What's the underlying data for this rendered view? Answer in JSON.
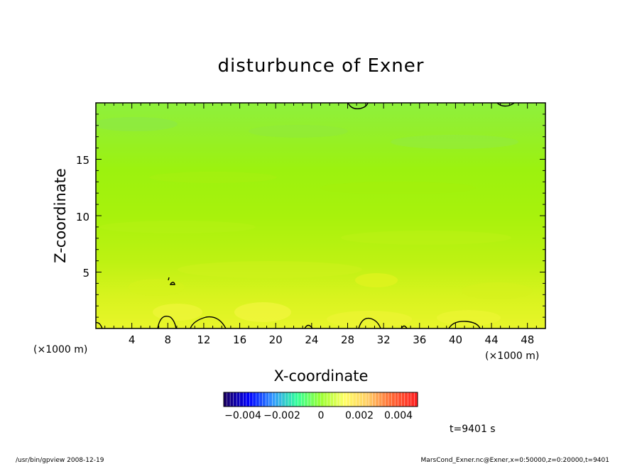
{
  "chart_data": {
    "type": "heatmap",
    "title": "disturbunce of Exner",
    "xlabel": "X-coordinate",
    "ylabel": "Z-coordinate",
    "x_unit": "(×1000 m)",
    "y_unit": "(×1000 m)",
    "xlim": [
      0,
      50
    ],
    "ylim": [
      0,
      20
    ],
    "x_ticks": [
      "4",
      "8",
      "12",
      "16",
      "20",
      "24",
      "28",
      "32",
      "36",
      "40",
      "44",
      "48"
    ],
    "y_ticks": [
      "5",
      "10",
      "15"
    ],
    "colorbar": {
      "range": [
        -0.005,
        0.005
      ],
      "labels": [
        "−0.004",
        "−0.002",
        "0",
        "0.002",
        "0.004"
      ],
      "colors": [
        "#1a0066",
        "#0000ff",
        "#3399ff",
        "#33ff99",
        "#99ff33",
        "#ffff66",
        "#ffcc66",
        "#ff6633",
        "#ff2222"
      ]
    },
    "field_colors": [
      "#8ef03c",
      "#9cf20e",
      "#b5f20a",
      "#cdf11c",
      "#e5f31e",
      "#f0f53a"
    ],
    "time_label": "t=9401 s"
  },
  "footer": {
    "left": "/usr/bin/gpview   2008-12-19",
    "right": "MarsCond_Exner.nc@Exner,x=0:50000,z=0:20000,t=9401"
  }
}
